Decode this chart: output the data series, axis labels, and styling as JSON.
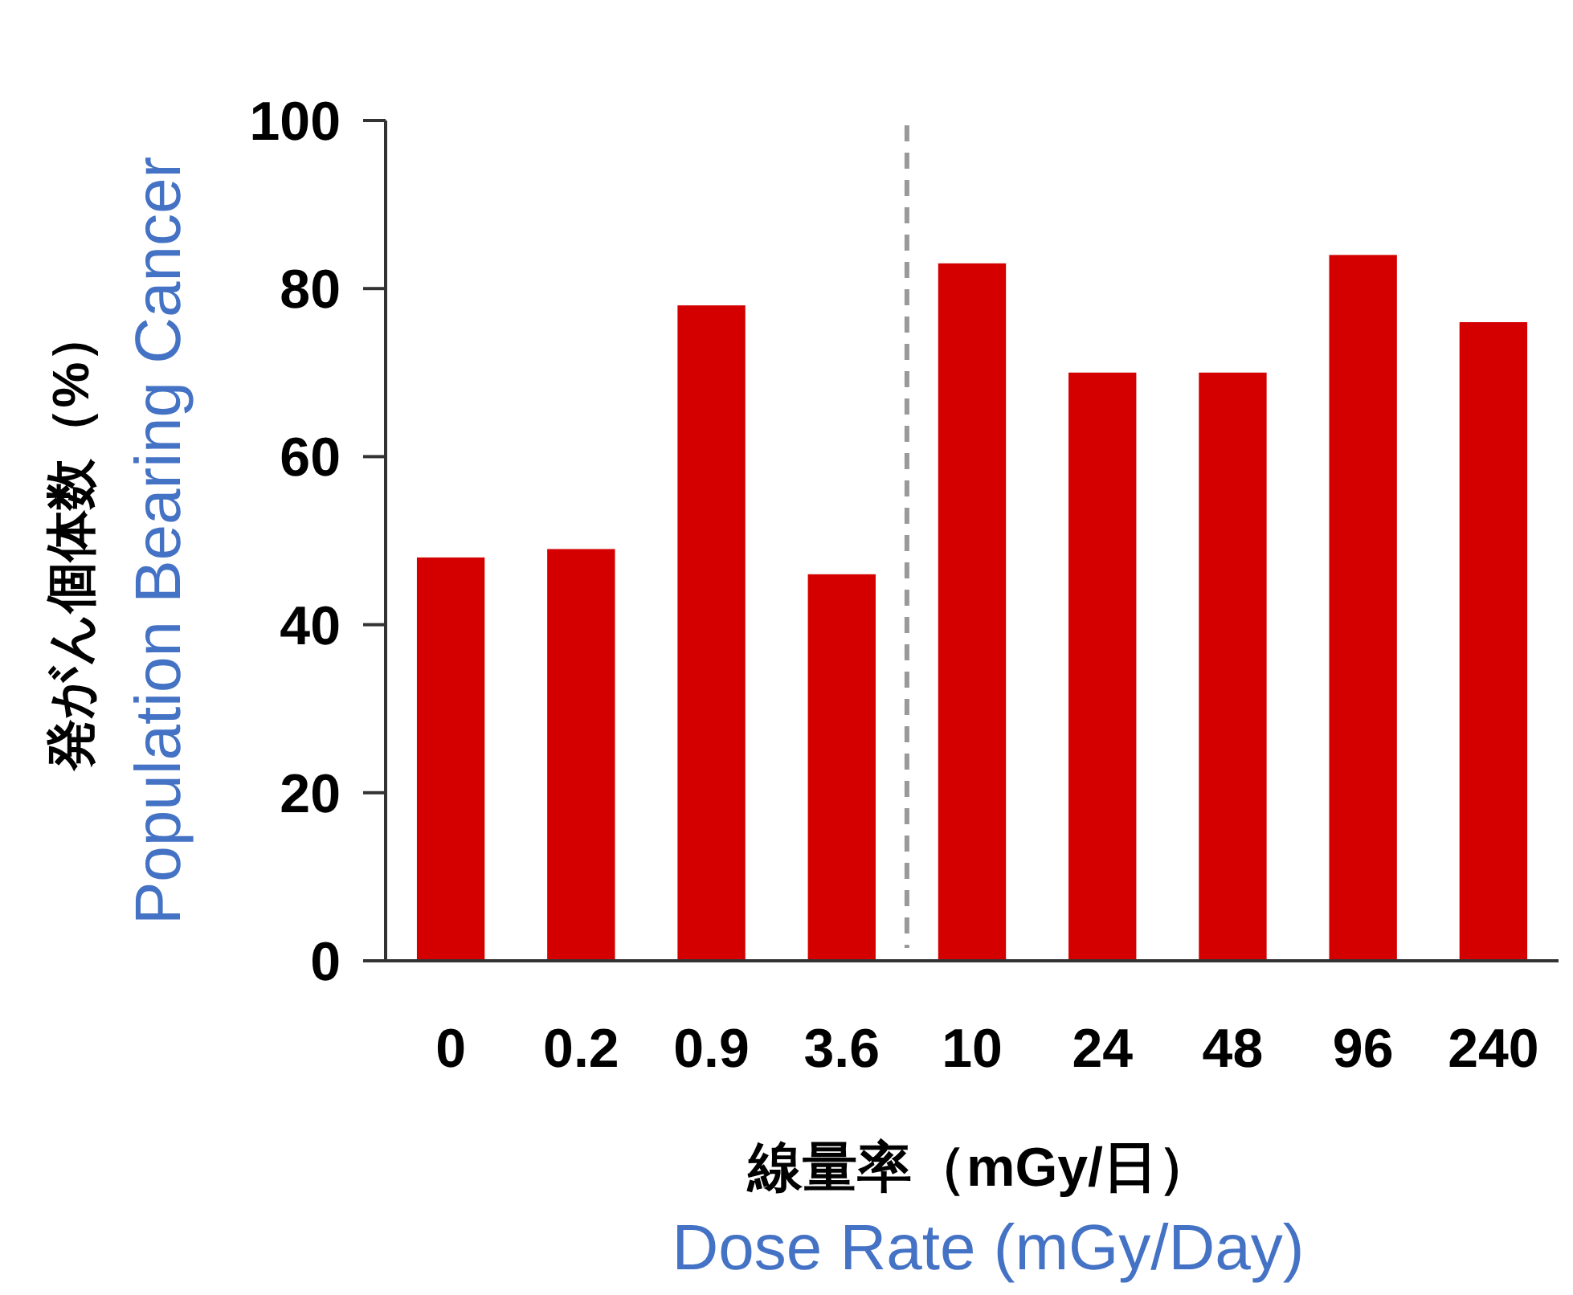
{
  "chart_data": {
    "type": "bar",
    "ylabel": "発がん個体数（%）",
    "xlabel": "線量率（mGy/日）",
    "annotations": [
      "Population Bearing Cancer",
      "Dose Rate (mGy/Day)"
    ],
    "categories": [
      "0",
      "0.2",
      "0.9",
      "3.6",
      "10",
      "24",
      "48",
      "96",
      "240"
    ],
    "values": [
      48,
      49,
      78,
      46,
      83,
      70,
      70,
      84,
      76
    ],
    "color": "#d40000",
    "ylim": [
      0,
      100
    ],
    "yticks": [
      0,
      20,
      40,
      60,
      80,
      100
    ]
  }
}
